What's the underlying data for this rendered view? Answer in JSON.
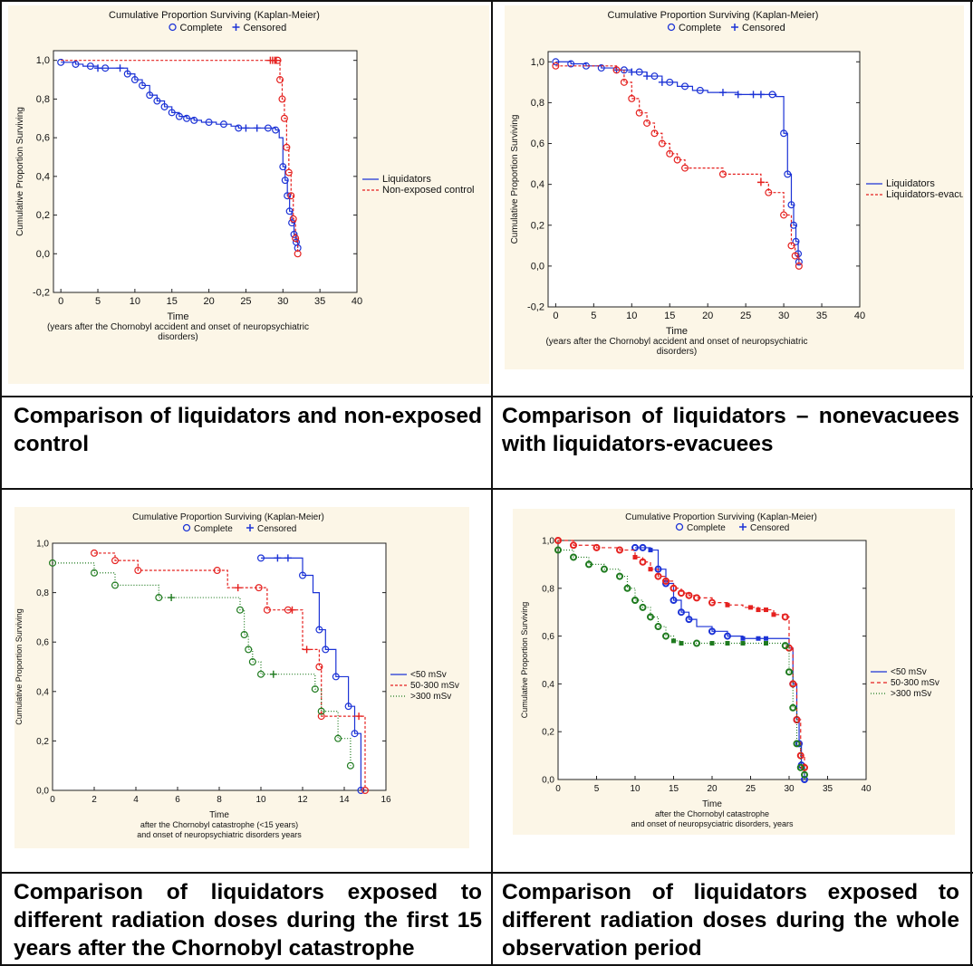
{
  "captions": [
    "Comparison of liquidators and non-exposed control",
    "Comparison of liquidators – nonevacuees with liquidators-evacuees",
    "Comparison of liquidators exposed to different radiation doses during the first 15 years after the Chornobyl catastrophe",
    "Comparison of liquidators exposed to different radiation doses during the whole observation period"
  ],
  "colors": {
    "blue": "#1c33d6",
    "red": "#e5211f",
    "green": "#1e7a1e",
    "panel_bg": "#fcf6e7"
  },
  "chart_data": [
    {
      "type": "line",
      "title": "Cumulative Proportion Surviving (Kaplan-Meier)",
      "marker_legend": [
        "Complete",
        "Censored"
      ],
      "ylabel": "Cumulative Proportion Surviving",
      "xlabel": [
        "Time",
        "(years after the Chornobyl accident and onset of neuropsychiatric",
        "disorders)"
      ],
      "xlim": [
        -1,
        40
      ],
      "ylim": [
        -0.2,
        1.05
      ],
      "xticks": [
        0,
        5,
        10,
        15,
        20,
        25,
        30,
        35,
        40
      ],
      "yticks": [
        -0.2,
        0.0,
        0.2,
        0.4,
        0.6,
        0.8,
        1.0
      ],
      "ytick_labels": [
        "-0,2",
        "0,0",
        "0,2",
        "0,4",
        "0,6",
        "0,8",
        "1,0"
      ],
      "series": [
        {
          "name": "Liquidators",
          "color": "blue",
          "dash": "",
          "x": [
            0,
            1,
            2,
            3,
            4,
            5,
            6,
            7,
            8,
            9,
            10,
            11,
            12,
            13,
            14,
            15,
            16,
            17,
            18,
            19,
            20,
            21,
            22,
            23,
            24,
            25,
            26,
            27,
            28,
            29,
            29.5,
            30,
            30.3,
            30.6,
            30.9,
            31.2,
            31.5,
            31.8,
            32
          ],
          "y": [
            0.99,
            0.99,
            0.98,
            0.97,
            0.97,
            0.96,
            0.96,
            0.96,
            0.96,
            0.93,
            0.9,
            0.87,
            0.82,
            0.79,
            0.76,
            0.73,
            0.71,
            0.7,
            0.69,
            0.68,
            0.68,
            0.67,
            0.67,
            0.66,
            0.65,
            0.65,
            0.65,
            0.65,
            0.65,
            0.64,
            0.6,
            0.45,
            0.38,
            0.3,
            0.22,
            0.16,
            0.1,
            0.06,
            0.03
          ],
          "marked_x": [
            0,
            2,
            4,
            6,
            9,
            10,
            11,
            12,
            13,
            14,
            15,
            16,
            17,
            18,
            20,
            22,
            24,
            28,
            29,
            30,
            30.3,
            30.6,
            30.9,
            31.2,
            31.5,
            31.8,
            32
          ],
          "censored_x": [
            5,
            8,
            25,
            26.5
          ]
        },
        {
          "name": "Non-exposed control",
          "color": "red",
          "dash": "3,2",
          "x": [
            0,
            28,
            29.3,
            29.6,
            29.9,
            30.2,
            30.5,
            30.8,
            31.1,
            31.4,
            31.7,
            32
          ],
          "y": [
            1.0,
            1.0,
            1.0,
            0.9,
            0.8,
            0.7,
            0.55,
            0.42,
            0.3,
            0.18,
            0.08,
            0.0
          ],
          "marked_x": [
            29.3,
            29.6,
            29.9,
            30.2,
            30.5,
            30.8,
            31.1,
            31.4,
            31.7,
            32
          ],
          "censored_x": [
            28.3,
            28.6,
            28.9,
            29.1
          ]
        }
      ]
    },
    {
      "type": "line",
      "title": "Cumulative Proportion Surviving (Kaplan-Meier)",
      "marker_legend": [
        "Complete",
        "Censored"
      ],
      "ylabel": "Cumulative Proportion Surviving",
      "xlabel": [
        "Time",
        "(years after the Chornobyl accident and onset of neuropsychiatric",
        "disorders)"
      ],
      "xlim": [
        -1,
        40
      ],
      "ylim": [
        -0.2,
        1.05
      ],
      "xticks": [
        0,
        5,
        10,
        15,
        20,
        25,
        30,
        35,
        40
      ],
      "yticks": [
        -0.2,
        0.0,
        0.2,
        0.4,
        0.6,
        0.8,
        1.0
      ],
      "ytick_labels": [
        "-0,2",
        "0,0",
        "0,2",
        "0,4",
        "0,6",
        "0,8",
        "1,0"
      ],
      "series": [
        {
          "name": "Liquidators",
          "color": "blue",
          "dash": "",
          "x": [
            0,
            2,
            4,
            6,
            8,
            10,
            12,
            14,
            16,
            18,
            20,
            22,
            24,
            26,
            28,
            29,
            30,
            30.5,
            31,
            31.3,
            31.6,
            31.9,
            32
          ],
          "y": [
            1.0,
            0.99,
            0.98,
            0.97,
            0.96,
            0.95,
            0.93,
            0.9,
            0.88,
            0.86,
            0.85,
            0.85,
            0.84,
            0.84,
            0.84,
            0.83,
            0.65,
            0.45,
            0.3,
            0.2,
            0.12,
            0.06,
            0.02
          ],
          "marked_x": [
            0,
            2,
            4,
            6,
            9,
            11,
            13,
            15,
            17,
            19,
            28.5,
            30,
            30.5,
            31,
            31.3,
            31.6,
            31.9,
            32
          ],
          "censored_x": [
            8,
            10,
            12,
            14,
            22,
            24,
            26,
            27
          ]
        },
        {
          "name": "Liquidators-evacuees",
          "color": "red",
          "dash": "3,2",
          "x": [
            0,
            7,
            8,
            9,
            10,
            11,
            12,
            13,
            14,
            15,
            16,
            17,
            18,
            20,
            22,
            24,
            26,
            27,
            28,
            30,
            31,
            31.5,
            32
          ],
          "y": [
            0.98,
            0.98,
            0.96,
            0.9,
            0.82,
            0.75,
            0.7,
            0.65,
            0.6,
            0.55,
            0.52,
            0.48,
            0.48,
            0.48,
            0.45,
            0.45,
            0.45,
            0.41,
            0.36,
            0.25,
            0.1,
            0.05,
            0.0
          ],
          "marked_x": [
            0,
            8,
            9,
            10,
            11,
            12,
            13,
            14,
            15,
            16,
            17,
            22,
            28,
            30,
            31,
            31.5,
            32
          ],
          "censored_x": [
            27
          ]
        }
      ]
    },
    {
      "type": "line",
      "title": "Cumulative Proportion Surviving (Kaplan-Meier)",
      "marker_legend": [
        "Complete",
        "Censored"
      ],
      "ylabel": "Cumulative Proportion Surviving",
      "xlabel": [
        "Time",
        "after the Chornobyl catastrophe (<15 years)",
        "and onset of neuropsychiatric disorders years"
      ],
      "xlim": [
        0,
        16
      ],
      "ylim": [
        0.0,
        1.0
      ],
      "xticks": [
        0,
        2,
        4,
        6,
        8,
        10,
        12,
        14,
        16
      ],
      "yticks": [
        0.0,
        0.2,
        0.4,
        0.6,
        0.8,
        1.0
      ],
      "ytick_labels": [
        "0,0",
        "0,2",
        "0,4",
        "0,6",
        "0,8",
        "1,0"
      ],
      "series": [
        {
          "name": "<50 mSv",
          "color": "blue",
          "dash": "",
          "x": [
            10,
            12,
            12.5,
            12.8,
            13.1,
            13.6,
            14.2,
            14.5,
            14.8
          ],
          "y": [
            0.94,
            0.87,
            0.8,
            0.65,
            0.57,
            0.46,
            0.34,
            0.23,
            0.0
          ],
          "marked_x": [
            10,
            12,
            12.8,
            13.1,
            13.6,
            14.2,
            14.5,
            14.8
          ],
          "censored_x": [
            10.8,
            11.3
          ]
        },
        {
          "name": "50-300 mSv",
          "color": "red",
          "dash": "3,2",
          "x": [
            2,
            3,
            4.1,
            7.9,
            8.4,
            9.9,
            10.3,
            11.3,
            12,
            12.8,
            12.9,
            13.4,
            14.7,
            15
          ],
          "y": [
            0.96,
            0.93,
            0.89,
            0.89,
            0.82,
            0.82,
            0.73,
            0.73,
            0.57,
            0.5,
            0.3,
            0.3,
            0.3,
            0.0
          ],
          "marked_x": [
            2,
            3,
            4.1,
            7.9,
            9.9,
            10.3,
            11.3,
            12.8,
            12.9,
            15
          ],
          "censored_x": [
            8.9,
            11.5,
            12.2,
            14.7
          ]
        },
        {
          "name": ">300 mSv",
          "color": "green",
          "dash": "1,2",
          "x": [
            0,
            2,
            3,
            5.1,
            9,
            9.2,
            9.4,
            9.6,
            10,
            12.6,
            12.9,
            13.7,
            14.3
          ],
          "y": [
            0.92,
            0.88,
            0.83,
            0.78,
            0.73,
            0.63,
            0.57,
            0.52,
            0.47,
            0.41,
            0.32,
            0.21,
            0.1
          ],
          "marked_x": [
            0,
            2,
            3,
            5.1,
            9,
            9.2,
            9.4,
            9.6,
            10,
            12.6,
            12.9,
            13.7,
            14.3
          ],
          "censored_x": [
            5.7,
            10.6
          ]
        }
      ]
    },
    {
      "type": "scatter",
      "title": "Cumulative Proportion Surviving (Kaplan-Meier)",
      "marker_legend": [
        "Complete",
        "Censored"
      ],
      "ylabel": "Cumulative Proportion Surviving",
      "xlabel": [
        "Time",
        "after the Chornobyl catastrophe",
        "and onset of neuropsyciatric disorders, years"
      ],
      "xlim": [
        0,
        40
      ],
      "ylim": [
        0.0,
        1.0
      ],
      "xticks": [
        0,
        5,
        10,
        15,
        20,
        25,
        30,
        35,
        40
      ],
      "yticks": [
        0.0,
        0.2,
        0.4,
        0.6,
        0.8,
        1.0
      ],
      "ytick_labels": [
        "0,0",
        "0,2",
        "0,4",
        "0,6",
        "0,8",
        "1,0"
      ],
      "series": [
        {
          "name": "<50 mSv",
          "color": "blue",
          "dash": "",
          "x": [
            10,
            11,
            12,
            13,
            14,
            15,
            16,
            17,
            18,
            20,
            22,
            24,
            26,
            28,
            30,
            30.5,
            31,
            31.3,
            31.6,
            32
          ],
          "y": [
            0.97,
            0.97,
            0.96,
            0.88,
            0.82,
            0.75,
            0.7,
            0.67,
            0.64,
            0.62,
            0.6,
            0.59,
            0.59,
            0.59,
            0.55,
            0.4,
            0.25,
            0.15,
            0.06,
            0.0
          ],
          "marked_x": [
            10,
            11,
            13,
            14,
            15,
            16,
            17,
            20,
            22,
            30.5,
            31,
            31.3,
            31.6,
            32
          ],
          "censored_x": [
            12,
            24,
            26,
            27
          ]
        },
        {
          "name": "50-300 mSv",
          "color": "red",
          "dash": "4,3",
          "x": [
            0,
            2,
            5,
            8,
            10,
            11,
            12,
            13,
            14,
            15,
            16,
            17,
            18,
            20,
            22,
            24,
            26,
            28,
            29.5,
            30,
            30.5,
            31,
            31.5,
            32
          ],
          "y": [
            1.0,
            0.98,
            0.97,
            0.96,
            0.93,
            0.91,
            0.88,
            0.85,
            0.83,
            0.8,
            0.78,
            0.77,
            0.76,
            0.74,
            0.73,
            0.72,
            0.71,
            0.69,
            0.68,
            0.55,
            0.4,
            0.25,
            0.1,
            0.05
          ],
          "marked_x": [
            0,
            2,
            5,
            8,
            11,
            13,
            14,
            15,
            16,
            17,
            18,
            20,
            29.5,
            30,
            30.5,
            31,
            31.5,
            32
          ],
          "censored_x": [
            10,
            12,
            22,
            25,
            26,
            27,
            28
          ]
        },
        {
          "name": ">300 mSv",
          "color": "green",
          "dash": "1,2",
          "x": [
            0,
            2,
            4,
            6,
            8,
            9,
            10,
            11,
            12,
            13,
            14,
            15,
            16,
            18,
            20,
            22,
            24,
            26,
            28,
            29.5,
            30,
            30.5,
            31,
            31.5,
            32
          ],
          "y": [
            0.96,
            0.93,
            0.9,
            0.88,
            0.85,
            0.8,
            0.75,
            0.72,
            0.68,
            0.64,
            0.6,
            0.58,
            0.57,
            0.57,
            0.57,
            0.57,
            0.57,
            0.57,
            0.57,
            0.56,
            0.45,
            0.3,
            0.15,
            0.05,
            0.02
          ],
          "marked_x": [
            0,
            2,
            4,
            6,
            8,
            9,
            10,
            11,
            12,
            13,
            14,
            18,
            29.5,
            30,
            30.5,
            31,
            31.5,
            32
          ],
          "censored_x": [
            15,
            16,
            20,
            22,
            24,
            27
          ]
        }
      ]
    }
  ]
}
